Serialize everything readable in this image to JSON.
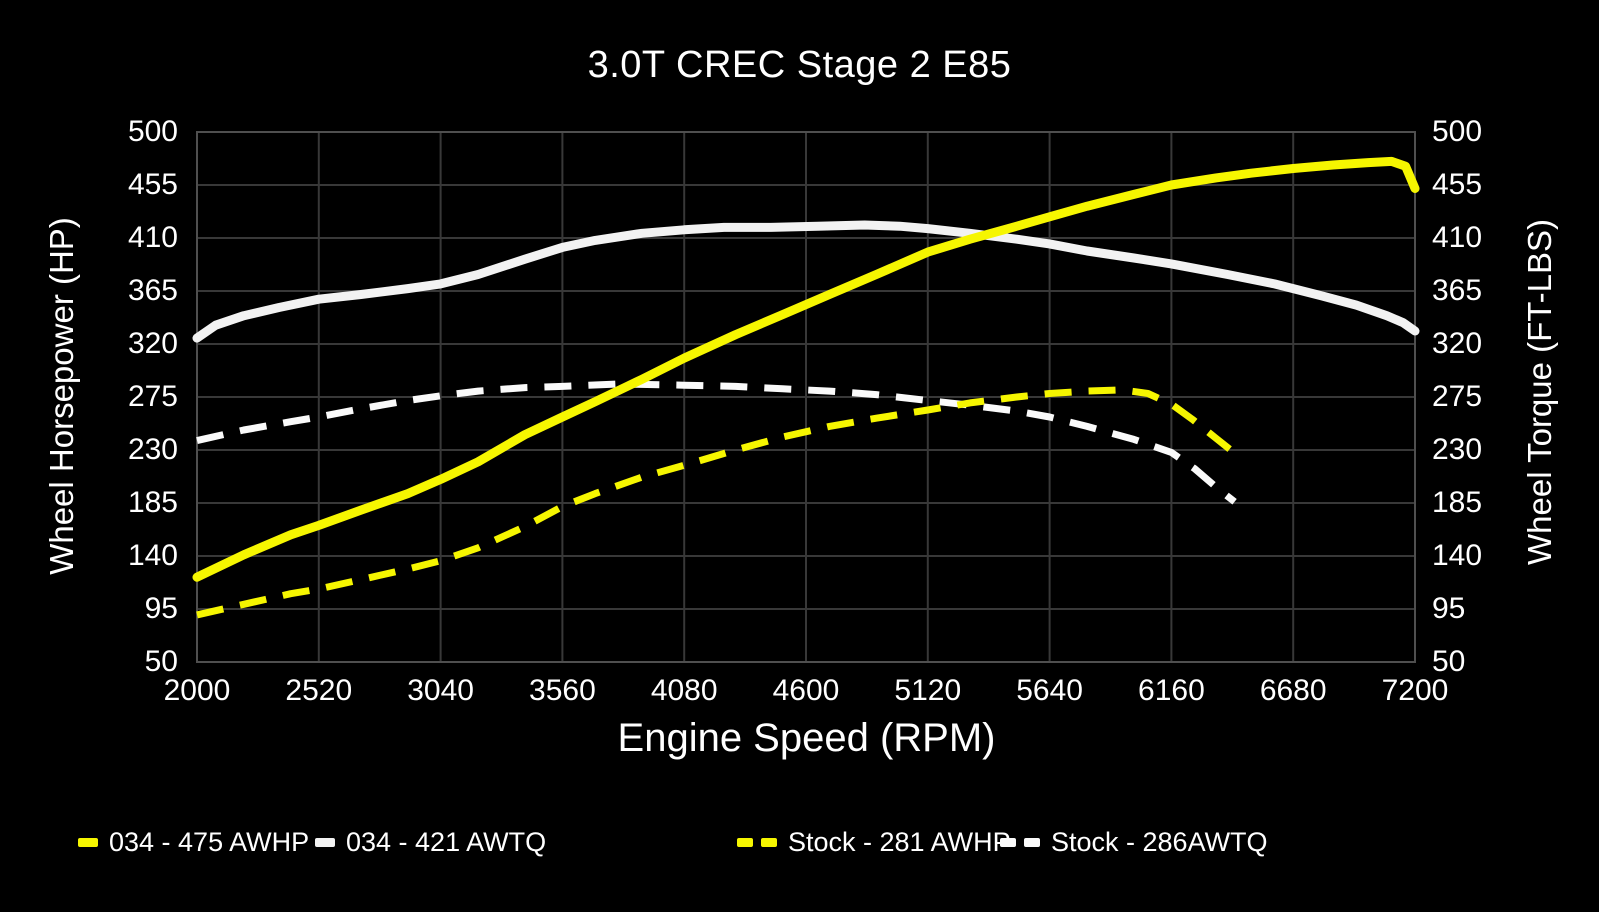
{
  "chart": {
    "title": "3.0T CREC Stage 2 E85",
    "x_label": "Engine Speed (RPM)",
    "y_left_label": "Wheel Horsepower (HP)",
    "y_right_label": "Wheel Torque (FT-LBS)"
  },
  "chart_data": {
    "type": "line",
    "title": "3.0T CREC Stage 2 E85",
    "xlabel": "Engine Speed (RPM)",
    "ylabel_left": "Wheel Horsepower (HP)",
    "ylabel_right": "Wheel Torque (FT-LBS)",
    "xlim": [
      2000,
      7200
    ],
    "ylim": [
      50,
      500
    ],
    "x_ticks": [
      2000,
      2520,
      3040,
      3560,
      4080,
      4600,
      5120,
      5640,
      6160,
      6680,
      7200
    ],
    "y_ticks": [
      500,
      455,
      410,
      365,
      320,
      275,
      230,
      185,
      140,
      95,
      50
    ],
    "grid": true,
    "legend_position": "bottom",
    "colors": {
      "background": "#000000",
      "text": "#ffffff",
      "grid": "#383838",
      "border": "#4f4f4f",
      "yellow": "#f6f600",
      "white": "#f2f2f2"
    },
    "series": [
      {
        "name": "034 - 475 AWHP",
        "color": "#f6f600",
        "style": "solid",
        "axis": "hp",
        "points": [
          [
            2000,
            122
          ],
          [
            2200,
            141
          ],
          [
            2400,
            158
          ],
          [
            2520,
            166
          ],
          [
            2700,
            179
          ],
          [
            2900,
            193
          ],
          [
            3040,
            205
          ],
          [
            3200,
            220
          ],
          [
            3400,
            243
          ],
          [
            3560,
            258
          ],
          [
            3700,
            271
          ],
          [
            3900,
            290
          ],
          [
            4080,
            308
          ],
          [
            4300,
            328
          ],
          [
            4500,
            345
          ],
          [
            4700,
            362
          ],
          [
            4900,
            379
          ],
          [
            5120,
            398
          ],
          [
            5300,
            409
          ],
          [
            5500,
            420
          ],
          [
            5640,
            428
          ],
          [
            5800,
            437
          ],
          [
            6000,
            447
          ],
          [
            6160,
            455
          ],
          [
            6350,
            461
          ],
          [
            6500,
            465
          ],
          [
            6680,
            469
          ],
          [
            6850,
            472
          ],
          [
            7000,
            474
          ],
          [
            7100,
            475
          ],
          [
            7160,
            471
          ],
          [
            7200,
            452
          ]
        ]
      },
      {
        "name": "034 - 421 AWTQ",
        "color": "#f2f2f2",
        "style": "solid",
        "axis": "tq",
        "points": [
          [
            2000,
            325
          ],
          [
            2080,
            336
          ],
          [
            2200,
            344
          ],
          [
            2350,
            351
          ],
          [
            2520,
            358
          ],
          [
            2700,
            362
          ],
          [
            2900,
            367
          ],
          [
            3040,
            371
          ],
          [
            3200,
            379
          ],
          [
            3400,
            392
          ],
          [
            3560,
            402
          ],
          [
            3700,
            408
          ],
          [
            3900,
            414
          ],
          [
            4080,
            417
          ],
          [
            4250,
            419
          ],
          [
            4450,
            419
          ],
          [
            4650,
            420
          ],
          [
            4850,
            421
          ],
          [
            5000,
            420
          ],
          [
            5120,
            418
          ],
          [
            5300,
            414
          ],
          [
            5500,
            409
          ],
          [
            5640,
            405
          ],
          [
            5800,
            399
          ],
          [
            6000,
            393
          ],
          [
            6160,
            388
          ],
          [
            6400,
            379
          ],
          [
            6600,
            371
          ],
          [
            6680,
            367
          ],
          [
            6800,
            361
          ],
          [
            6950,
            353
          ],
          [
            7080,
            344
          ],
          [
            7150,
            338
          ],
          [
            7200,
            331
          ]
        ]
      },
      {
        "name": "Stock - 281 AWHP",
        "color": "#f6f600",
        "style": "dashed",
        "axis": "hp",
        "points": [
          [
            2000,
            90
          ],
          [
            2200,
            99
          ],
          [
            2400,
            108
          ],
          [
            2520,
            112
          ],
          [
            2700,
            120
          ],
          [
            2900,
            129
          ],
          [
            3040,
            136
          ],
          [
            3200,
            147
          ],
          [
            3400,
            165
          ],
          [
            3560,
            182
          ],
          [
            3700,
            193
          ],
          [
            3900,
            207
          ],
          [
            4080,
            217
          ],
          [
            4300,
            230
          ],
          [
            4500,
            241
          ],
          [
            4700,
            250
          ],
          [
            4900,
            257
          ],
          [
            5120,
            264
          ],
          [
            5300,
            270
          ],
          [
            5500,
            275
          ],
          [
            5640,
            278
          ],
          [
            5800,
            280
          ],
          [
            5950,
            281
          ],
          [
            6060,
            278
          ],
          [
            6160,
            269
          ],
          [
            6250,
            256
          ],
          [
            6350,
            240
          ],
          [
            6420,
            229
          ]
        ]
      },
      {
        "name": "Stock - 286AWTQ",
        "color": "#fafafa",
        "style": "dashed",
        "axis": "tq",
        "points": [
          [
            2000,
            238
          ],
          [
            2200,
            247
          ],
          [
            2400,
            254
          ],
          [
            2520,
            258
          ],
          [
            2700,
            265
          ],
          [
            2900,
            272
          ],
          [
            3040,
            276
          ],
          [
            3200,
            280
          ],
          [
            3400,
            283
          ],
          [
            3560,
            284
          ],
          [
            3800,
            286
          ],
          [
            4080,
            285
          ],
          [
            4300,
            284
          ],
          [
            4500,
            282
          ],
          [
            4700,
            280
          ],
          [
            4900,
            277
          ],
          [
            5120,
            272
          ],
          [
            5300,
            268
          ],
          [
            5500,
            263
          ],
          [
            5640,
            258
          ],
          [
            5800,
            250
          ],
          [
            6000,
            239
          ],
          [
            6160,
            228
          ],
          [
            6260,
            214
          ],
          [
            6360,
            197
          ],
          [
            6430,
            186
          ]
        ]
      }
    ]
  }
}
